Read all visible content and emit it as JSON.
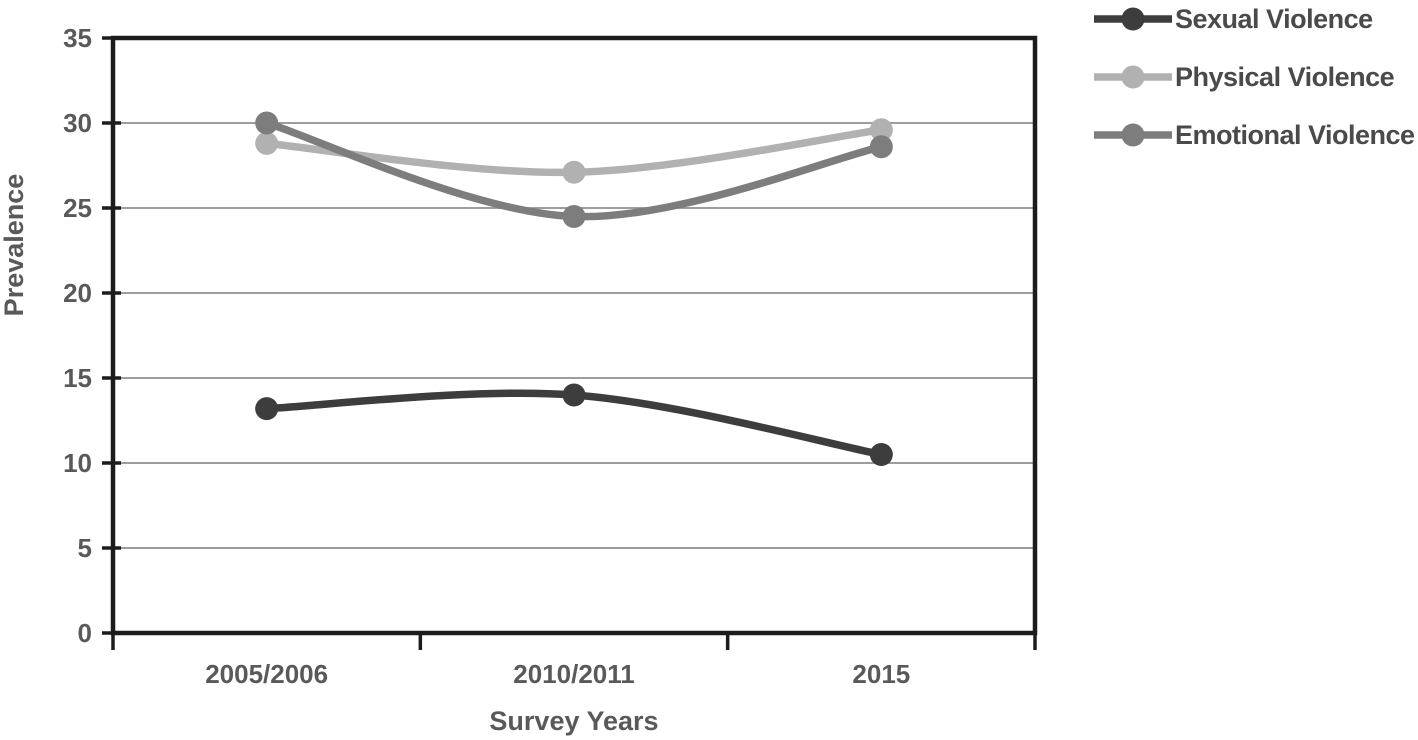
{
  "chart_data": {
    "type": "line",
    "title": "",
    "xlabel": "Survey Years",
    "ylabel": "Prevalence",
    "categories": [
      "2005/2006",
      "2010/2011",
      "2015"
    ],
    "series": [
      {
        "name": "Sexual Violence",
        "values": [
          13.2,
          14.0,
          10.5
        ],
        "color": "#3d3d3d"
      },
      {
        "name": "Physical Violence",
        "values": [
          28.8,
          27.1,
          29.6
        ],
        "color": "#b1b1b1"
      },
      {
        "name": "Emotional Violence",
        "values": [
          30.0,
          24.5,
          28.6
        ],
        "color": "#7d7d7d"
      }
    ],
    "ylim": [
      0,
      35
    ],
    "yticks": [
      0,
      5,
      10,
      15,
      20,
      25,
      30,
      35
    ],
    "grid": true,
    "line_style": "smooth",
    "marker": "circle",
    "legend_position": "top-right"
  },
  "colors": {
    "background": "#ffffff",
    "axis_border": "#1c1c1c",
    "gridline": "#8f8f8f",
    "tick_label": "#595959",
    "axis_title": "#595959",
    "legend_text": "#4a4a4a"
  }
}
